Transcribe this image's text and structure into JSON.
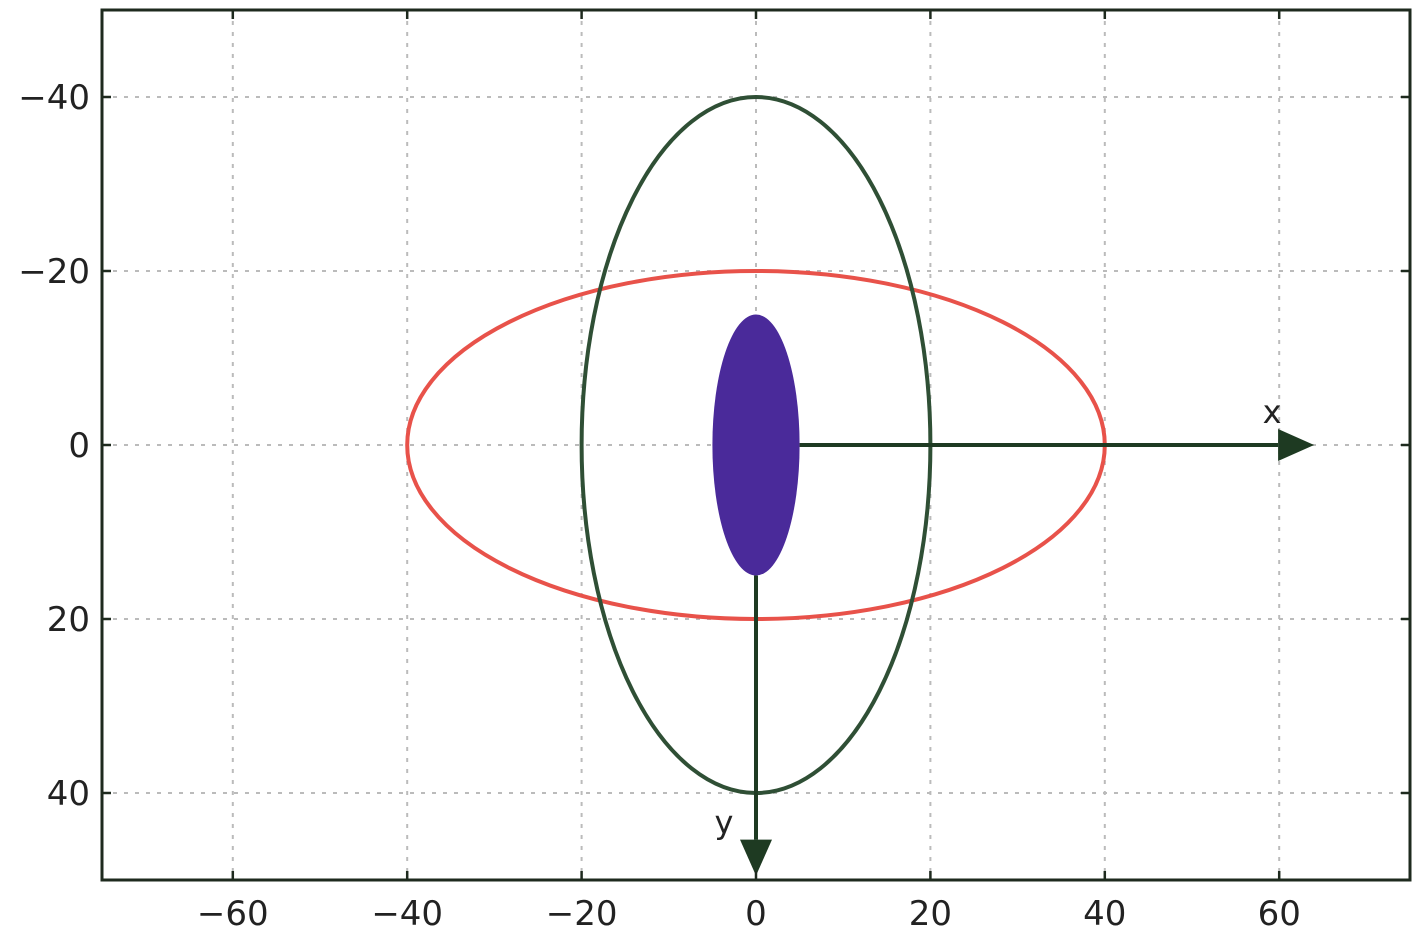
{
  "chart_data": {
    "type": "scatter",
    "title": "",
    "xlabel": "",
    "ylabel": "",
    "xlim": [
      -75,
      75
    ],
    "ylim": [
      50,
      -50
    ],
    "y_inverted": true,
    "grid": true,
    "xticks": [
      -60,
      -40,
      -20,
      0,
      20,
      40,
      60
    ],
    "yticks": [
      -40,
      -20,
      0,
      20,
      40
    ],
    "xtick_labels": [
      "−60",
      "−40",
      "−20",
      "0",
      "20",
      "40",
      "60"
    ],
    "ytick_labels": [
      "−40",
      "−20",
      "0",
      "20",
      "40"
    ],
    "ellipses": [
      {
        "cx": 0,
        "cy": 0,
        "rx": 40,
        "ry": 20,
        "color": "#e8524a",
        "filled": false
      },
      {
        "cx": 0,
        "cy": 0,
        "rx": 20,
        "ry": 40,
        "color": "#2f4f35",
        "filled": false
      },
      {
        "cx": 0,
        "cy": 0,
        "rx": 5,
        "ry": 15,
        "color": "#4a2a9a",
        "filled": true
      }
    ],
    "arrows": [
      {
        "label": "x",
        "from": [
          5,
          0
        ],
        "to": [
          64,
          0
        ],
        "color": "#1e3a22"
      },
      {
        "label": "y",
        "from": [
          0,
          15
        ],
        "to": [
          0,
          49.5
        ],
        "color": "#1e3a22"
      }
    ]
  }
}
